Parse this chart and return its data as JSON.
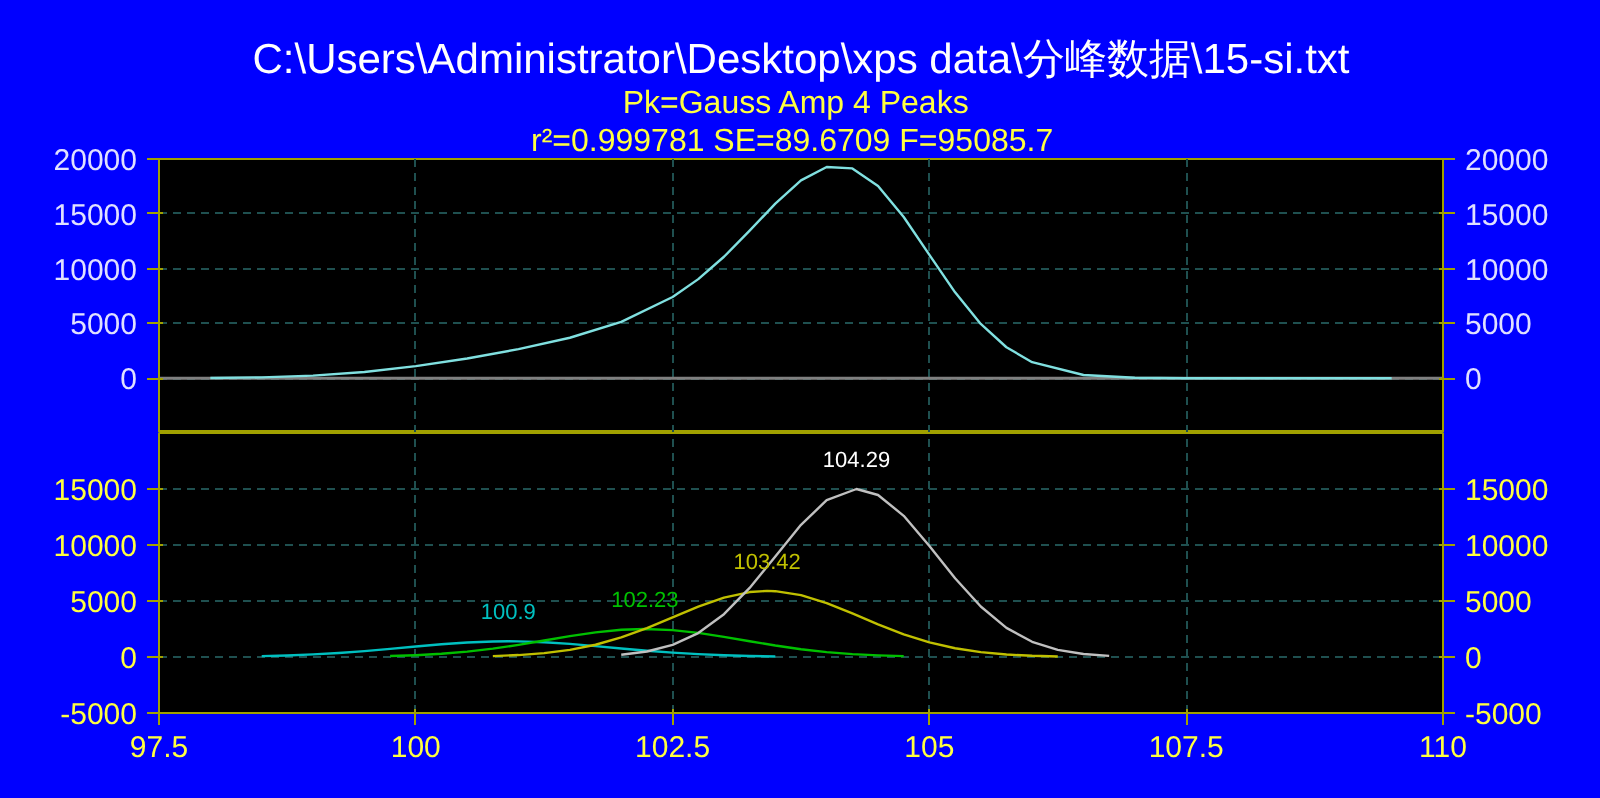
{
  "chart_data": [
    {
      "type": "line",
      "title": "C:\\Users\\Administrator\\Desktop\\xps data\\分峰数据\\15-si.txt",
      "subtitle": "Pk=Gauss Amp  4 Peaks",
      "annotations": [
        "r²=0.999781  SE=89.6709  F=95085.7"
      ],
      "xlim": [
        97.5,
        110
      ],
      "xticks": [
        97.5,
        100,
        102.5,
        105,
        107.5,
        110
      ],
      "ylim": [
        -5000,
        20000
      ],
      "yticks": [
        0,
        5000,
        10000,
        15000,
        20000
      ],
      "y2lim": [
        -5000,
        20000
      ],
      "y2ticks": [
        0,
        5000,
        10000,
        15000,
        20000
      ],
      "tick_labels": "y",
      "grid": true,
      "marker": "none",
      "line_style": "solid",
      "ref_lines": [
        {
          "axis": "y",
          "value": 0,
          "color": "#808080"
        }
      ],
      "series": [
        {
          "color": "#80e0e0",
          "x": [
            98.0,
            98.5,
            99.0,
            99.5,
            100.0,
            100.5,
            101.0,
            101.5,
            102.0,
            102.5,
            102.75,
            103.0,
            103.25,
            103.5,
            103.75,
            104.0,
            104.25,
            104.5,
            104.75,
            105.0,
            105.25,
            105.5,
            105.75,
            106.0,
            106.5,
            107.0,
            107.5,
            108.0,
            109.0,
            109.5
          ],
          "values": [
            21,
            79,
            238,
            565,
            1098,
            1802,
            2648,
            3692,
            5139,
            7407,
            9040,
            11080,
            13457,
            15928,
            18048,
            19266,
            19140,
            17528,
            14707,
            11257,
            7833,
            4947,
            2824,
            1463,
            290,
            36,
            0,
            0,
            0,
            0
          ]
        }
      ]
    },
    {
      "type": "line",
      "xlim": [
        97.5,
        110
      ],
      "xticks": [
        97.5,
        100,
        102.5,
        105,
        107.5,
        110
      ],
      "ylim": [
        -5000,
        20000
      ],
      "yticks": [
        -5000,
        0,
        5000,
        10000,
        15000
      ],
      "y2lim": [
        -5000,
        20000
      ],
      "y2ticks": [
        -5000,
        0,
        5000,
        10000,
        15000
      ],
      "grid": true,
      "marker": "none",
      "line_style": "solid",
      "annotations": [
        {
          "text": "100.9",
          "x": 100.9,
          "y": 1400
        },
        {
          "text": "102.23",
          "x": 102.23,
          "y": 2500
        },
        {
          "text": "103.42",
          "x": 103.42,
          "y": 5900
        },
        {
          "text": "104.29",
          "x": 104.29,
          "y": 15000
        }
      ],
      "series": [
        {
          "color": "#00c0c0",
          "x": [
            98.5,
            98.75,
            99.0,
            99.25,
            99.5,
            99.75,
            100.0,
            100.25,
            100.5,
            100.75,
            100.9,
            101.0,
            101.25,
            101.5,
            101.75,
            102.0,
            102.25,
            102.5,
            102.75,
            103.0,
            103.25,
            103.5
          ],
          "values": [
            79,
            139,
            230,
            359,
            525,
            723,
            934,
            1134,
            1292,
            1384,
            1400,
            1393,
            1317,
            1169,
            975,
            764,
            563,
            389,
            253,
            154,
            89,
            48
          ]
        },
        {
          "color": "#00c000",
          "x": [
            99.75,
            100.0,
            100.25,
            100.5,
            100.75,
            101.0,
            101.25,
            101.5,
            101.75,
            102.0,
            102.23,
            102.5,
            102.75,
            103.0,
            103.25,
            103.5,
            103.75,
            104.0,
            104.25,
            104.5,
            104.75
          ],
          "values": [
            83,
            159,
            285,
            476,
            743,
            1081,
            1469,
            1861,
            2200,
            2428,
            2500,
            2401,
            2152,
            1800,
            1405,
            1023,
            695,
            440,
            261,
            144,
            74
          ]
        },
        {
          "color": "#c0c000",
          "x": [
            100.75,
            101.0,
            101.25,
            101.5,
            101.75,
            102.0,
            102.25,
            102.5,
            102.75,
            103.0,
            103.25,
            103.42,
            103.5,
            103.75,
            104.0,
            104.25,
            104.5,
            104.75,
            105.0,
            105.25,
            105.5,
            105.75,
            106.0,
            106.25
          ],
          "values": [
            80,
            172,
            343,
            637,
            1095,
            1745,
            2581,
            3539,
            4499,
            5304,
            5798,
            5900,
            5877,
            5524,
            4815,
            3892,
            2918,
            2027,
            1307,
            781,
            433,
            223,
            106,
            47
          ]
        },
        {
          "color": "#c0c0c0",
          "x": [
            102.0,
            102.25,
            102.5,
            102.75,
            103.0,
            103.25,
            103.5,
            103.75,
            104.0,
            104.29,
            104.5,
            104.75,
            105.0,
            105.25,
            105.5,
            105.75,
            106.0,
            106.25,
            106.5,
            106.75
          ],
          "values": [
            202,
            491,
            1078,
            2136,
            3822,
            6165,
            8980,
            11805,
            13998,
            15000,
            14466,
            12606,
            9914,
            7035,
            4506,
            2601,
            1357,
            639,
            271,
            104
          ]
        }
      ]
    }
  ]
}
